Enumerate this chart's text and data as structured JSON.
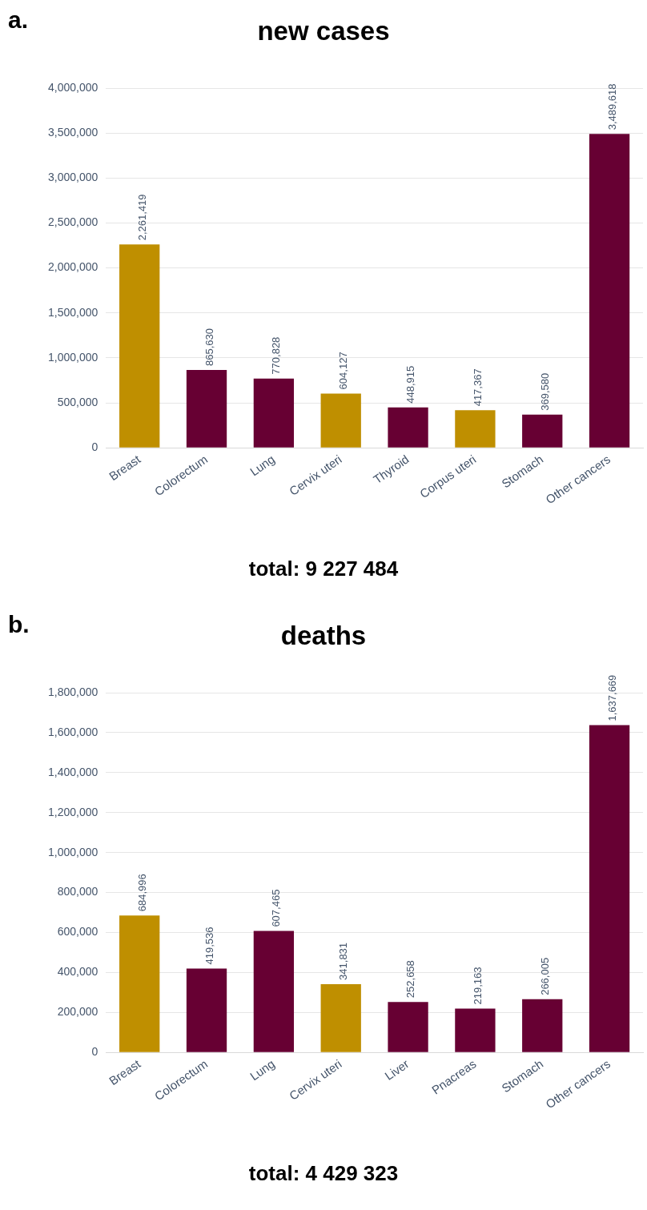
{
  "chart_data": [
    {
      "type": "bar",
      "title": "new cases",
      "annotations": [
        "a.",
        "total: 9 227 484"
      ],
      "categories": [
        "Breast",
        "Colorectum",
        "Lung",
        "Cervix uteri",
        "Thyroid",
        "Corpus uteri",
        "Stomach",
        "Other cancers"
      ],
      "values": [
        2261419,
        865630,
        770828,
        604127,
        448915,
        417367,
        369580,
        3489618
      ],
      "colors": [
        "#bf8f00",
        "#670033",
        "#670033",
        "#bf8f00",
        "#670033",
        "#bf8f00",
        "#670033",
        "#670033"
      ],
      "value_labels": [
        "2,261,419",
        "865,630",
        "770,828",
        "604,127",
        "448,915",
        "417,367",
        "369,580",
        "3,489,618"
      ],
      "ylim": [
        0,
        4000000
      ],
      "yticks": [
        {
          "value": 0,
          "label": "0"
        },
        {
          "value": 500000,
          "label": "500,000"
        },
        {
          "value": 1000000,
          "label": "1,000,000"
        },
        {
          "value": 1500000,
          "label": "1,500,000"
        },
        {
          "value": 2000000,
          "label": "2,000,000"
        },
        {
          "value": 2500000,
          "label": "2,500,000"
        },
        {
          "value": 3000000,
          "label": "3,000,000"
        },
        {
          "value": 3500000,
          "label": "3,500,000"
        },
        {
          "value": 4000000,
          "label": "4,000,000"
        }
      ],
      "grid": "y",
      "legend": false
    },
    {
      "type": "bar",
      "title": "deaths",
      "annotations": [
        "b.",
        "total: 4 429 323"
      ],
      "categories": [
        "Breast",
        "Colorectum",
        "Lung",
        "Cervix uteri",
        "Liver",
        "Pnacreas",
        "Stomach",
        "Other cancers"
      ],
      "values": [
        684996,
        419536,
        607465,
        341831,
        252658,
        219163,
        266005,
        1637669
      ],
      "colors": [
        "#bf8f00",
        "#670033",
        "#670033",
        "#bf8f00",
        "#670033",
        "#670033",
        "#670033",
        "#670033"
      ],
      "value_labels": [
        "684,996",
        "419,536",
        "607,465",
        "341,831",
        "252,658",
        "219,163",
        "266,005",
        "1,637,669"
      ],
      "ylim": [
        0,
        1800000
      ],
      "yticks": [
        {
          "value": 0,
          "label": "0"
        },
        {
          "value": 200000,
          "label": "200,000"
        },
        {
          "value": 400000,
          "label": "400,000"
        },
        {
          "value": 600000,
          "label": "600,000"
        },
        {
          "value": 800000,
          "label": "800,000"
        },
        {
          "value": 1000000,
          "label": "1,000,000"
        },
        {
          "value": 1200000,
          "label": "1,200,000"
        },
        {
          "value": 1400000,
          "label": "1,400,000"
        },
        {
          "value": 1600000,
          "label": "1,600,000"
        },
        {
          "value": 1800000,
          "label": "1,800,000"
        }
      ],
      "grid": "y",
      "legend": false
    }
  ]
}
